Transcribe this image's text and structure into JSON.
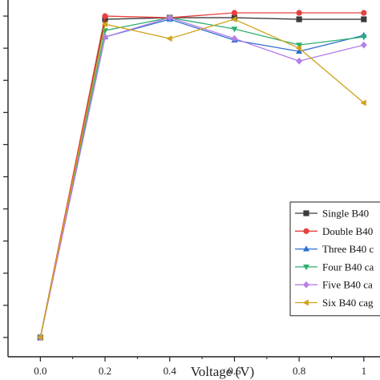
{
  "chart_data": {
    "type": "line",
    "title": "",
    "xlabel": "Voltage (V)",
    "ylabel": "",
    "xlim": [
      -0.1,
      1.05
    ],
    "ylim": [
      -0.6,
      10.5
    ],
    "x_ticks": [
      "0.0",
      "0.2",
      "0.4",
      "0.6",
      "0.8",
      "1"
    ],
    "y_ticks": [
      0,
      1,
      2,
      3,
      4,
      5,
      6,
      7,
      8,
      9,
      10
    ],
    "grid": false,
    "legend_position": "bottom-right",
    "series": [
      {
        "name": "Single B40",
        "color": "#3c3c3c",
        "marker": "square",
        "x": [
          0.0,
          0.2,
          0.4,
          0.6,
          0.8,
          1.0
        ],
        "y": [
          0,
          9.9,
          9.95,
          9.95,
          9.9,
          9.9
        ]
      },
      {
        "name": "Double B40",
        "color": "#e8403c",
        "marker": "circle",
        "x": [
          0.0,
          0.2,
          0.4,
          0.6,
          0.8,
          1.0
        ],
        "y": [
          0,
          10.0,
          9.95,
          10.1,
          10.1,
          10.1
        ]
      },
      {
        "name": "Three B40 c",
        "color": "#2f6fd0",
        "marker": "triangle-up",
        "x": [
          0.0,
          0.2,
          0.4,
          0.6,
          0.8,
          1.0
        ],
        "y": [
          0,
          9.35,
          9.9,
          9.25,
          8.9,
          9.4
        ]
      },
      {
        "name": "Four B40 ca",
        "color": "#2eae6f",
        "marker": "triangle-down",
        "x": [
          0.0,
          0.2,
          0.4,
          0.6,
          0.8,
          1.0
        ],
        "y": [
          0,
          9.55,
          9.95,
          9.6,
          9.1,
          9.35
        ]
      },
      {
        "name": "Five B40 ca",
        "color": "#b57ee6",
        "marker": "diamond",
        "x": [
          0.0,
          0.2,
          0.4,
          0.6,
          0.8,
          1.0
        ],
        "y": [
          0,
          9.35,
          9.95,
          9.3,
          8.6,
          9.1
        ]
      },
      {
        "name": "Six B40 cag",
        "color": "#d1a21a",
        "marker": "triangle-left",
        "x": [
          0.0,
          0.2,
          0.4,
          0.6,
          0.8,
          1.0
        ],
        "y": [
          0,
          9.75,
          9.3,
          9.9,
          9.0,
          7.3
        ]
      }
    ]
  }
}
